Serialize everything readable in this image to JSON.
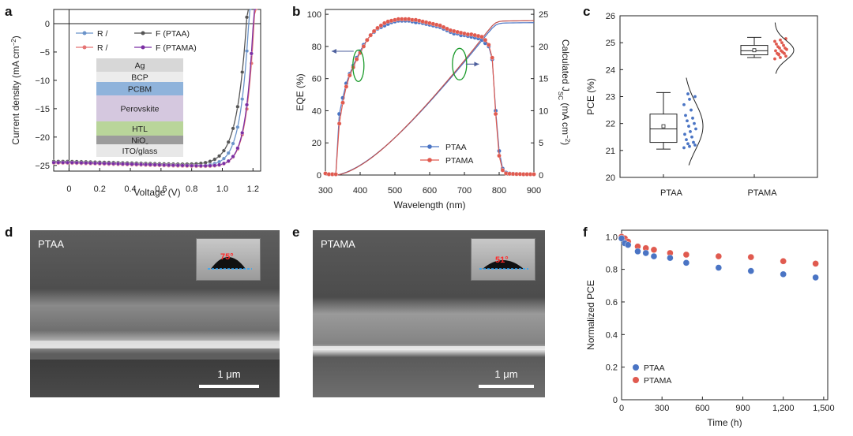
{
  "panels": {
    "a": {
      "label": "a",
      "chart_data": {
        "type": "line",
        "xlabel": "Voltage (V)",
        "ylabel_main": "Current density (mA cm",
        "ylabel_sup": "−2",
        "ylabel_end": ")",
        "xticks": [
          "0",
          "0.2",
          "0.4",
          "0.6",
          "0.8",
          "1.0",
          "1.2"
        ],
        "yticks": [
          "0",
          "−5",
          "−10",
          "−15",
          "−20",
          "−25"
        ],
        "xlim": [
          -0.1,
          1.25
        ],
        "ylim": [
          -26,
          2.5
        ],
        "legend": [
          {
            "text": "R /",
            "color": "#6b93c9"
          },
          {
            "text": "F (PTAA)",
            "color": "#555555"
          },
          {
            "text": "R /",
            "color": "#e57373"
          },
          {
            "text": "F (PTAMA)",
            "color": "#7b2fa3"
          }
        ],
        "series": [
          {
            "color": "#6b93c9",
            "jsc": -24.5,
            "voc": 1.17,
            "k": 0.056
          },
          {
            "color": "#555555",
            "jsc": -24.3,
            "voc": 1.155,
            "k": 0.065
          },
          {
            "color": "#e57373",
            "jsc": -24.6,
            "voc": 1.205,
            "k": 0.052
          },
          {
            "color": "#7b2fa3",
            "jsc": -24.5,
            "voc": 1.2,
            "k": 0.05
          }
        ],
        "stack": [
          {
            "label": "Ag",
            "color": "#d7d7d7"
          },
          {
            "label": "BCP",
            "color": "#ececec"
          },
          {
            "label": "PCBM",
            "color": "#8fb3db"
          },
          {
            "label": "Perovskite",
            "color": "#d5c8df"
          },
          {
            "label": "HTL",
            "color": "#b9d59a"
          },
          {
            "label": "NiO",
            "sub": "x",
            "color": "#9c9c9c"
          },
          {
            "label": "ITO/glass",
            "color": "#e8e8e8"
          }
        ]
      }
    },
    "b": {
      "label": "b",
      "chart_data": {
        "type": "line",
        "xlabel": "Wavelength (nm)",
        "ylabel_left": "EQE (%)",
        "ylabel_right_main": "Calculated J",
        "ylabel_right_sub": "SC",
        "ylabel_right_unit": " (mA cm",
        "ylabel_right_sup": "−2",
        "ylabel_right_end": ")",
        "xticks": [
          "300",
          "400",
          "500",
          "600",
          "700",
          "800",
          "900"
        ],
        "yticks_left": [
          "0",
          "20",
          "40",
          "60",
          "80",
          "100"
        ],
        "yticks_right": [
          "0",
          "5",
          "10",
          "15",
          "20",
          "25"
        ],
        "xlim": [
          300,
          900
        ],
        "ylim_left": [
          0,
          103
        ],
        "ylim_right": [
          0,
          25.75
        ],
        "series": [
          {
            "name": "PTAA",
            "color": "#4a74c4",
            "x": [
              300,
              310,
              320,
              330,
              340,
              350,
              360,
              370,
              380,
              390,
              400,
              410,
              420,
              430,
              440,
              450,
              460,
              470,
              480,
              490,
              500,
              510,
              520,
              530,
              540,
              550,
              560,
              570,
              580,
              590,
              600,
              610,
              620,
              630,
              640,
              650,
              660,
              670,
              680,
              690,
              700,
              710,
              720,
              730,
              740,
              750,
              760,
              770,
              780,
              790,
              800,
              810,
              820,
              830,
              840,
              850,
              860,
              870,
              880,
              890,
              900
            ],
            "y": [
              1,
              0.5,
              0.5,
              0.5,
              38,
              48,
              57,
              63,
              68,
              73,
              77,
              81,
              84,
              87,
              89,
              91,
              92,
              93,
              94,
              95,
              95.5,
              96,
              96,
              96,
              96,
              95.5,
              95,
              95,
              94.5,
              94,
              93.5,
              93,
              92.5,
              92,
              91,
              90,
              89,
              88,
              88,
              87,
              87,
              86.5,
              86,
              85.5,
              85,
              84,
              82,
              80,
              72,
              40,
              15,
              4,
              1.5,
              1,
              0.8,
              0.7,
              0.6,
              0.5,
              0.5,
              0.5,
              0.5
            ]
          },
          {
            "name": "PTAMA",
            "color": "#e05a4f",
            "x": [
              300,
              310,
              320,
              330,
              340,
              350,
              360,
              370,
              380,
              390,
              400,
              410,
              420,
              430,
              440,
              450,
              460,
              470,
              480,
              490,
              500,
              510,
              520,
              530,
              540,
              550,
              560,
              570,
              580,
              590,
              600,
              610,
              620,
              630,
              640,
              650,
              660,
              670,
              680,
              690,
              700,
              710,
              720,
              730,
              740,
              750,
              760,
              770,
              780,
              790,
              800,
              810,
              820,
              830,
              840,
              850,
              860,
              870,
              880,
              890,
              900
            ],
            "y": [
              1,
              0.5,
              0.5,
              0.5,
              32,
              45,
              55,
              62,
              67,
              72,
              76,
              80,
              84,
              87,
              89.5,
              91.5,
              93,
              94.5,
              95.5,
              96,
              96.5,
              97,
              97,
              97,
              97,
              96.5,
              96.5,
              96,
              95.5,
              95,
              94.5,
              94,
              93.5,
              93,
              92,
              91,
              90,
              89.5,
              89,
              88.5,
              88,
              87.5,
              87.5,
              87,
              86.5,
              86,
              84,
              81,
              73,
              38,
              12,
              3,
              1,
              0.8,
              0.7,
              0.6,
              0.6,
              0.5,
              0.5,
              0.5,
              0.5
            ]
          }
        ],
        "jsc_curves": [
          {
            "name": "PTAA",
            "color": "#4a74c4",
            "final": 23.7
          },
          {
            "name": "PTAMA",
            "color": "#c0504d",
            "final": 24.0
          }
        ]
      }
    },
    "c": {
      "label": "c",
      "chart_data": {
        "type": "box",
        "ylabel": "PCE (%)",
        "categories": [
          "PTAA",
          "PTAMA"
        ],
        "yticks": [
          "20",
          "21",
          "22",
          "23",
          "24",
          "25",
          "26"
        ],
        "ylim": [
          20,
          26
        ],
        "boxes": [
          {
            "name": "PTAA",
            "color": "#4a74c4",
            "min": 21.05,
            "q1": 21.3,
            "median": 21.8,
            "q3": 22.35,
            "max": 23.15,
            "mean": 21.9,
            "points": [
              21.1,
              21.15,
              21.2,
              21.25,
              21.3,
              21.4,
              21.5,
              21.6,
              21.7,
              21.8,
              21.9,
              22.0,
              22.1,
              22.2,
              22.3,
              22.5,
              22.7,
              22.9,
              23.0,
              23.1
            ]
          },
          {
            "name": "PTAMA",
            "color": "#e05a4f",
            "min": 24.45,
            "q1": 24.55,
            "median": 24.7,
            "q3": 24.9,
            "max": 25.2,
            "mean": 24.72,
            "points": [
              24.4,
              24.45,
              24.5,
              24.55,
              24.6,
              24.6,
              24.65,
              24.7,
              24.7,
              24.75,
              24.8,
              24.8,
              24.85,
              24.9,
              24.95,
              25.0,
              25.05,
              25.1,
              25.15,
              24.58
            ]
          }
        ]
      }
    },
    "d": {
      "label": "d",
      "image_label": "PTAA",
      "scale": "1 μm",
      "angle": "75°"
    },
    "e": {
      "label": "e",
      "image_label": "PTAMA",
      "scale": "1 μm",
      "angle": "51°"
    },
    "f": {
      "label": "f",
      "chart_data": {
        "type": "scatter",
        "xlabel": "Time (h)",
        "ylabel": "Normalized PCE",
        "xticks": [
          "0",
          "300",
          "600",
          "900",
          "1,200",
          "1,500"
        ],
        "yticks": [
          "0",
          "0.2",
          "0.4",
          "0.6",
          "0.8",
          "1.0"
        ],
        "xlim": [
          0,
          1530
        ],
        "ylim": [
          0,
          1.04
        ],
        "series": [
          {
            "name": "PTAA",
            "color": "#4a74c4",
            "x": [
              0,
              24,
              48,
              120,
              180,
              240,
              360,
              480,
              720,
              960,
              1200,
              1440
            ],
            "y": [
              0.99,
              0.96,
              0.95,
              0.91,
              0.9,
              0.88,
              0.87,
              0.84,
              0.81,
              0.79,
              0.77,
              0.75
            ]
          },
          {
            "name": "PTAMA",
            "color": "#e05a4f",
            "x": [
              0,
              24,
              48,
              120,
              180,
              240,
              360,
              480,
              720,
              960,
              1200,
              1440
            ],
            "y": [
              1.0,
              0.99,
              0.97,
              0.94,
              0.93,
              0.92,
              0.9,
              0.89,
              0.88,
              0.875,
              0.85,
              0.835
            ]
          }
        ]
      }
    }
  }
}
